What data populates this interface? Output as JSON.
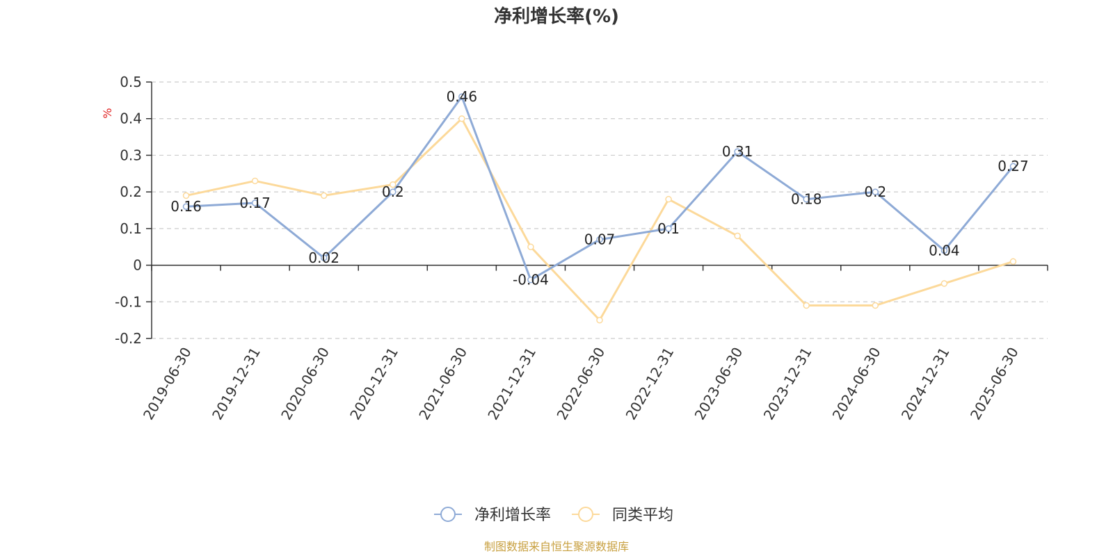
{
  "chart_data": {
    "type": "line",
    "title": "净利增长率(%)",
    "ylabel": "%",
    "xlabel": "",
    "ylim": [
      -0.2,
      0.5
    ],
    "yticks": [
      -0.2,
      -0.1,
      0,
      0.1,
      0.2,
      0.3,
      0.4,
      0.5
    ],
    "ytick_labels": [
      "-0.2",
      "-0.1",
      "0",
      "0.1",
      "0.2",
      "0.3",
      "0.4",
      "0.5"
    ],
    "grid": true,
    "legend_position": "bottom-center",
    "categories": [
      "2019-06-30",
      "2019-12-31",
      "2020-06-30",
      "2020-12-31",
      "2021-06-30",
      "2021-12-31",
      "2022-06-30",
      "2022-12-31",
      "2023-06-30",
      "2023-12-31",
      "2024-06-30",
      "2024-12-31",
      "2025-06-30"
    ],
    "series": [
      {
        "name": "净利增长率",
        "color": "#8eaad6",
        "values": [
          0.16,
          0.17,
          0.02,
          0.2,
          0.46,
          -0.04,
          0.07,
          0.1,
          0.31,
          0.18,
          0.2,
          0.04,
          0.27
        ],
        "data_labels": [
          "0.16",
          "0.17",
          "0.02",
          "0.2",
          "0.46",
          "-0.04",
          "0.07",
          "0.1",
          "0.31",
          "0.18",
          "0.2",
          "0.04",
          "0.27"
        ]
      },
      {
        "name": "同类平均",
        "color": "#fcd99a",
        "values": [
          0.19,
          0.23,
          0.19,
          0.22,
          0.4,
          0.05,
          -0.15,
          0.18,
          0.08,
          -0.11,
          -0.11,
          -0.05,
          0.01
        ]
      }
    ]
  },
  "footer": {
    "source": "制图数据来自恒生聚源数据库"
  }
}
